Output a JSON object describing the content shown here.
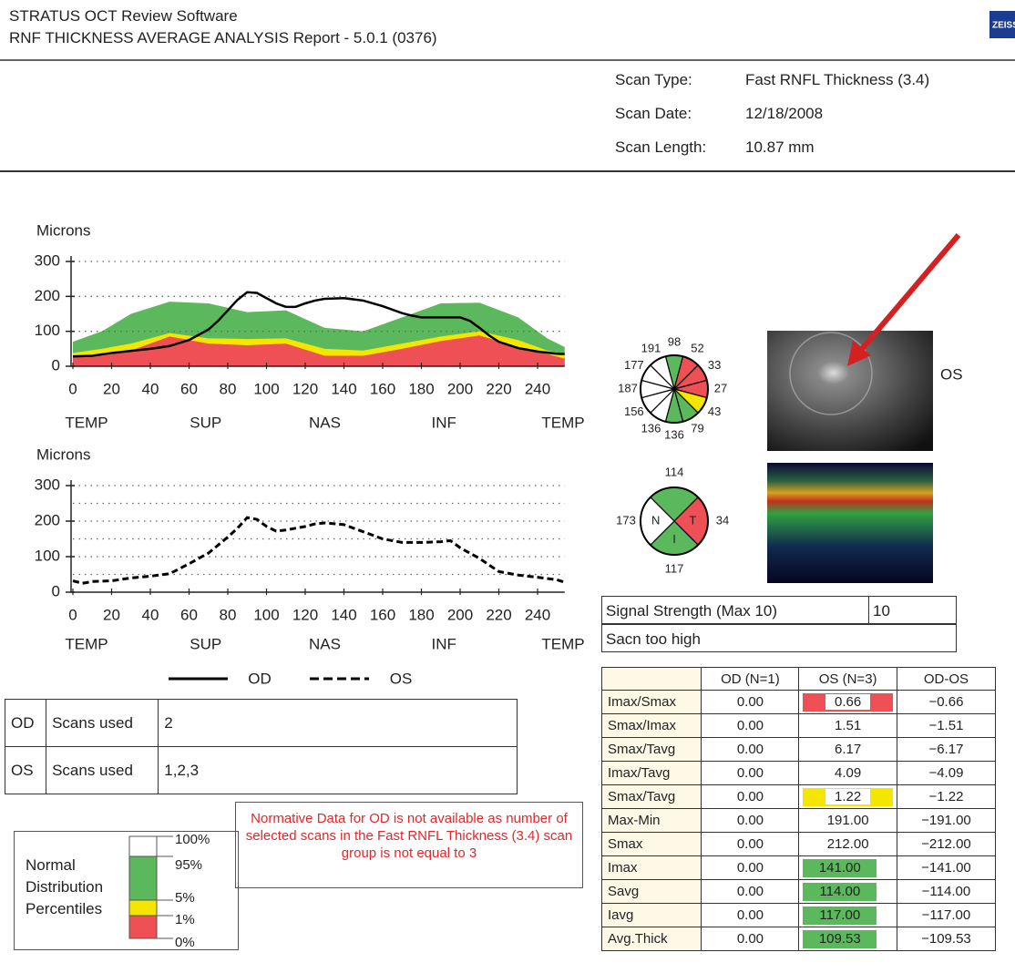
{
  "header": {
    "line1": "STRATUS OCT Review Software",
    "line2": "RNF THICKNESS AVERAGE ANALYSIS Report - 5.0.1 (0376)",
    "logo": "ZEISS"
  },
  "scan_info": [
    {
      "label": "Scan Type:",
      "value": "Fast RNFL Thickness (3.4)"
    },
    {
      "label": "Scan Date:",
      "value": "12/18/2008"
    },
    {
      "label": "Scan Length:",
      "value": "10.87 mm"
    }
  ],
  "charts": [
    {
      "type": "line",
      "ylabel": "Microns",
      "xlim": [
        0,
        254
      ],
      "ylim": [
        0,
        300
      ],
      "xticks": [
        0,
        20,
        40,
        60,
        80,
        100,
        120,
        140,
        160,
        180,
        200,
        220,
        240
      ],
      "yticks": [
        0,
        100,
        200,
        300
      ],
      "grid": [
        100,
        200,
        300
      ],
      "regions": [
        "TEMP",
        "SUP",
        "NAS",
        "INF",
        "TEMP"
      ],
      "bands": {
        "x": [
          0,
          15,
          30,
          50,
          70,
          90,
          110,
          130,
          150,
          170,
          190,
          210,
          230,
          245,
          254
        ],
        "series": [
          {
            "color": "#5cb85c",
            "values": [
              70,
              100,
              150,
              185,
              180,
              155,
              160,
              110,
              100,
              140,
              180,
              182,
              140,
              80,
              55
            ]
          },
          {
            "color": "#f5e600",
            "values": [
              38,
              50,
              65,
              95,
              80,
              78,
              80,
              50,
              45,
              65,
              85,
              100,
              75,
              45,
              35
            ]
          },
          {
            "color": "#ee5055",
            "values": [
              25,
              32,
              45,
              85,
              65,
              60,
              65,
              30,
              30,
              50,
              72,
              88,
              55,
              35,
              22
            ]
          }
        ]
      },
      "series": [
        {
          "color": "#000000",
          "dashed": false,
          "x": [
            0,
            10,
            20,
            30,
            40,
            50,
            60,
            70,
            75,
            80,
            85,
            90,
            95,
            100,
            105,
            110,
            115,
            120,
            125,
            130,
            140,
            150,
            160,
            170,
            175,
            180,
            190,
            200,
            205,
            210,
            215,
            220,
            230,
            240,
            250,
            254
          ],
          "values": [
            28,
            30,
            38,
            44,
            50,
            58,
            75,
            105,
            130,
            160,
            190,
            212,
            210,
            195,
            180,
            170,
            170,
            180,
            188,
            193,
            195,
            188,
            172,
            152,
            145,
            140,
            140,
            140,
            130,
            110,
            88,
            70,
            52,
            42,
            36,
            35
          ]
        }
      ]
    },
    {
      "type": "line",
      "ylabel": "Microns",
      "xlim": [
        0,
        254
      ],
      "ylim": [
        0,
        300
      ],
      "xticks": [
        0,
        20,
        40,
        60,
        80,
        100,
        120,
        140,
        160,
        180,
        200,
        220,
        240
      ],
      "yticks": [
        0,
        100,
        200,
        300
      ],
      "grid": [
        50,
        100,
        150,
        200,
        250,
        300
      ],
      "regions": [
        "TEMP",
        "SUP",
        "NAS",
        "INF",
        "TEMP"
      ],
      "series": [
        {
          "color": "#000000",
          "dashed": true,
          "x": [
            0,
            5,
            10,
            20,
            30,
            40,
            50,
            60,
            70,
            80,
            85,
            90,
            95,
            100,
            105,
            110,
            120,
            125,
            130,
            140,
            150,
            160,
            170,
            180,
            190,
            195,
            200,
            210,
            220,
            230,
            240,
            250,
            254
          ],
          "values": [
            32,
            25,
            30,
            32,
            40,
            45,
            52,
            80,
            110,
            155,
            180,
            210,
            205,
            185,
            172,
            175,
            185,
            192,
            195,
            190,
            170,
            150,
            140,
            140,
            142,
            145,
            125,
            95,
            58,
            48,
            42,
            35,
            28
          ]
        }
      ]
    }
  ],
  "legend": [
    {
      "label": "OD",
      "dashed": false
    },
    {
      "label": "OS",
      "dashed": true
    }
  ],
  "clock_chart": {
    "type": "pie",
    "values": [
      98,
      52,
      33,
      27,
      43,
      79,
      136,
      136,
      156,
      187,
      177,
      191
    ],
    "colors": [
      "#5cb85c",
      "#ee5055",
      "#ee5055",
      "#ee5055",
      "#f5e600",
      "#5cb85c",
      "#5cb85c",
      "#ffffff",
      "#ffffff",
      "#ffffff",
      "#ffffff",
      "#ffffff"
    ]
  },
  "quadrant_chart": {
    "type": "pie",
    "values": [
      114,
      34,
      117,
      173
    ],
    "letters": [
      null,
      "T",
      "I",
      "N"
    ],
    "colors": [
      "#5cb85c",
      "#ee5055",
      "#5cb85c",
      "#ffffff"
    ]
  },
  "image_label": "OS",
  "signal": {
    "label": "Signal Strength (Max 10)",
    "value": "10",
    "note": "Sacn too high"
  },
  "scans_table": {
    "rows": [
      [
        "OD",
        "Scans used",
        "2"
      ],
      [
        "OS",
        "Scans used",
        "1,2,3"
      ]
    ]
  },
  "notice": "Normative Data for OD is not available as number of selected scans in the Fast RNFL Thickness (3.4) scan group is not equal to 3",
  "distribution": {
    "title": [
      "Normal",
      "Distribution",
      "Percentiles"
    ],
    "labels": [
      "100%",
      "95%",
      "5%",
      "1%",
      "0%"
    ],
    "colors": [
      "#ffffff",
      "#5cb85c",
      "#f5e600",
      "#ee5055"
    ]
  },
  "params": {
    "columns": [
      "OD (N=1)",
      "OS (N=3)",
      "OD-OS"
    ],
    "rows": [
      {
        "name": "Imax/Smax",
        "od": "0.00",
        "os": "0.66",
        "diff": "−0.66",
        "os_color": "#ee5055",
        "os_inner": "#ffffff"
      },
      {
        "name": "Smax/Imax",
        "od": "0.00",
        "os": "1.51",
        "diff": "−1.51"
      },
      {
        "name": "Smax/Tavg",
        "od": "0.00",
        "os": "6.17",
        "diff": "−6.17"
      },
      {
        "name": "Imax/Tavg",
        "od": "0.00",
        "os": "4.09",
        "diff": "−4.09"
      },
      {
        "name": "Smax/Tavg",
        "od": "0.00",
        "os": "1.22",
        "diff": "−1.22",
        "os_color": "#f5e600",
        "os_inner": "#ffffff"
      },
      {
        "name": "Max-Min",
        "od": "0.00",
        "os": "191.00",
        "diff": "−191.00"
      },
      {
        "name": "Smax",
        "od": "0.00",
        "os": "212.00",
        "diff": "−212.00"
      },
      {
        "name": "Imax",
        "od": "0.00",
        "os": "141.00",
        "diff": "−141.00",
        "os_color": "#5cb85c"
      },
      {
        "name": "Savg",
        "od": "0.00",
        "os": "114.00",
        "diff": "−114.00",
        "os_color": "#5cb85c"
      },
      {
        "name": "Iavg",
        "od": "0.00",
        "os": "117.00",
        "diff": "−117.00",
        "os_color": "#5cb85c"
      },
      {
        "name": "Avg.Thick",
        "od": "0.00",
        "os": "109.53",
        "diff": "−109.53",
        "os_color": "#5cb85c"
      }
    ]
  }
}
